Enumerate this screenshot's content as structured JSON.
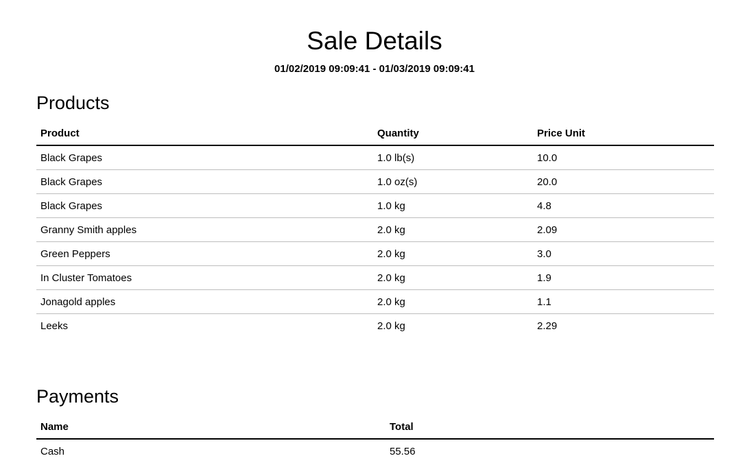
{
  "report": {
    "title": "Sale Details",
    "date_range": "01/02/2019 09:09:41 - 01/03/2019 09:09:41"
  },
  "products": {
    "heading": "Products",
    "columns": [
      "Product",
      "Quantity",
      "Price Unit"
    ],
    "rows": [
      {
        "product": "Black Grapes",
        "quantity": "1.0 lb(s)",
        "price_unit": "10.0"
      },
      {
        "product": "Black Grapes",
        "quantity": "1.0 oz(s)",
        "price_unit": "20.0"
      },
      {
        "product": "Black Grapes",
        "quantity": "1.0 kg",
        "price_unit": "4.8"
      },
      {
        "product": "Granny Smith apples",
        "quantity": "2.0 kg",
        "price_unit": "2.09"
      },
      {
        "product": "Green Peppers",
        "quantity": "2.0 kg",
        "price_unit": "3.0"
      },
      {
        "product": "In Cluster Tomatoes",
        "quantity": "2.0 kg",
        "price_unit": "1.9"
      },
      {
        "product": "Jonagold apples",
        "quantity": "2.0 kg",
        "price_unit": "1.1"
      },
      {
        "product": "Leeks",
        "quantity": "2.0 kg",
        "price_unit": "2.29"
      }
    ]
  },
  "payments": {
    "heading": "Payments",
    "columns": [
      "Name",
      "Total"
    ],
    "rows": [
      {
        "name": "Cash",
        "total": "55.56"
      }
    ]
  }
}
